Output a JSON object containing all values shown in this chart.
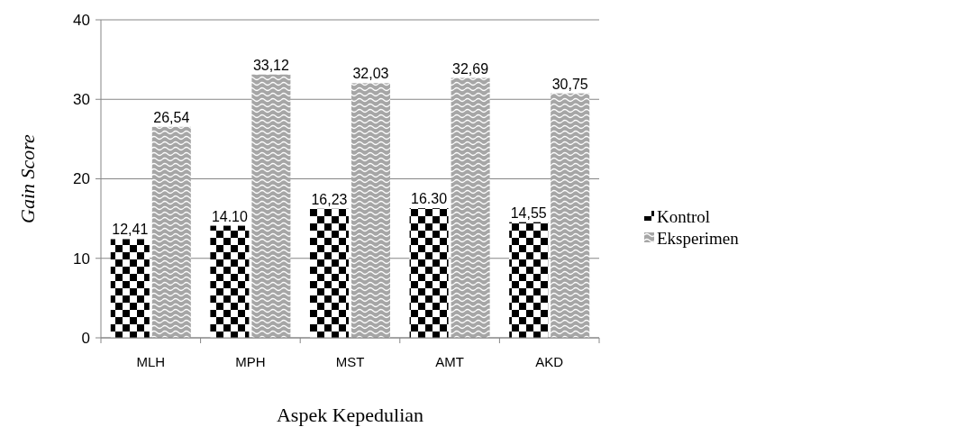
{
  "chart_data": {
    "type": "bar",
    "xlabel": "Aspek Kepedulian",
    "ylabel": "Gain Score",
    "categories": [
      "MLH",
      "MPH",
      "MST",
      "AMT",
      "AKD"
    ],
    "series": [
      {
        "name": "Kontrol",
        "color": "#000000",
        "values": [
          12.41,
          14.1,
          16.23,
          16.3,
          14.55
        ],
        "value_labels": [
          "12,41",
          "14.10",
          "16,23",
          "16.30",
          "14,55"
        ]
      },
      {
        "name": "Eksperimen",
        "color": "#a6a6a6",
        "values": [
          26.54,
          33.12,
          32.03,
          32.69,
          30.75
        ],
        "value_labels": [
          "26,54",
          "33,12",
          "32,03",
          "32,69",
          "30,75"
        ]
      }
    ],
    "ylim": [
      0,
      40
    ],
    "yticks": [
      0,
      10,
      20,
      30,
      40
    ],
    "grid": "y",
    "legend": "right"
  }
}
